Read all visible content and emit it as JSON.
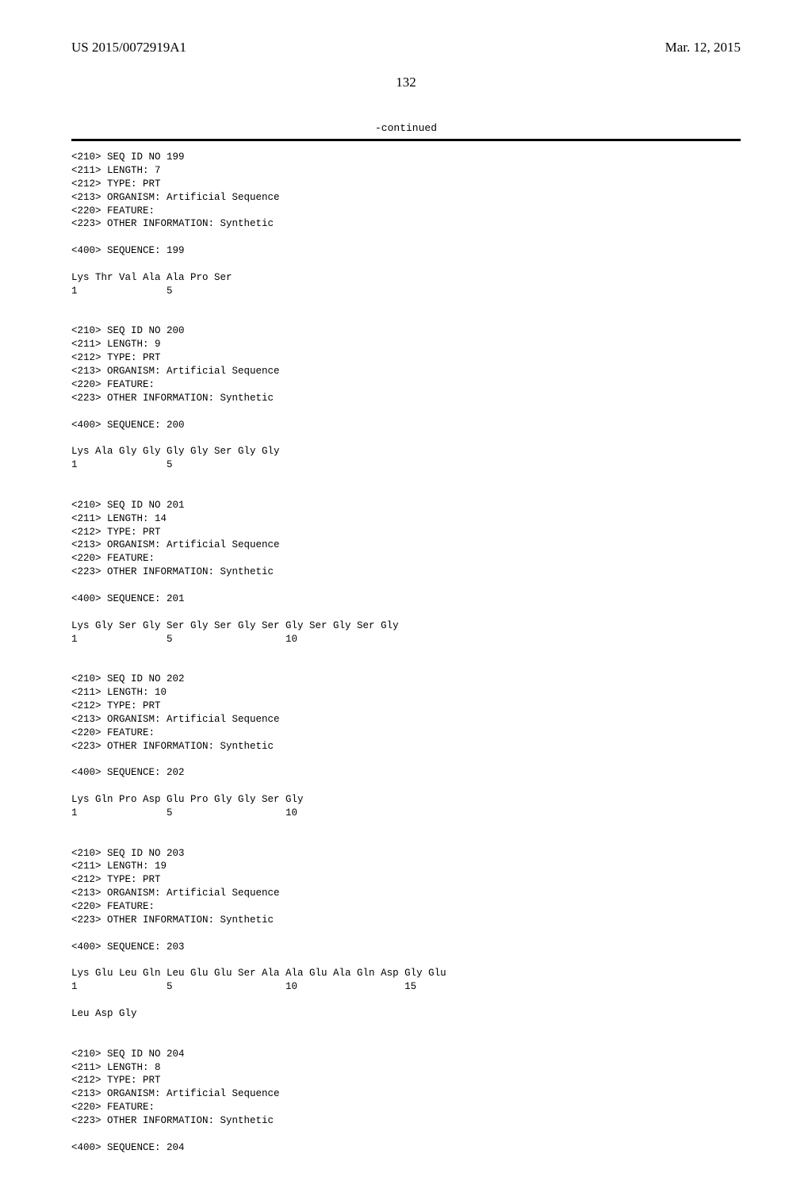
{
  "header": {
    "pub_num": "US 2015/0072919A1",
    "pub_date": "Mar. 12, 2015"
  },
  "page_number": "132",
  "continued_label": "-continued",
  "entries": [
    {
      "tags": [
        "<210> SEQ ID NO 199",
        "<211> LENGTH: 7",
        "<212> TYPE: PRT",
        "<213> ORGANISM: Artificial Sequence",
        "<220> FEATURE:",
        "<223> OTHER INFORMATION: Synthetic"
      ],
      "seq_tag": "<400> SEQUENCE: 199",
      "seq_lines": [
        "Lys Thr Val Ala Ala Pro Ser",
        "1               5"
      ]
    },
    {
      "tags": [
        "<210> SEQ ID NO 200",
        "<211> LENGTH: 9",
        "<212> TYPE: PRT",
        "<213> ORGANISM: Artificial Sequence",
        "<220> FEATURE:",
        "<223> OTHER INFORMATION: Synthetic"
      ],
      "seq_tag": "<400> SEQUENCE: 200",
      "seq_lines": [
        "Lys Ala Gly Gly Gly Gly Ser Gly Gly",
        "1               5"
      ]
    },
    {
      "tags": [
        "<210> SEQ ID NO 201",
        "<211> LENGTH: 14",
        "<212> TYPE: PRT",
        "<213> ORGANISM: Artificial Sequence",
        "<220> FEATURE:",
        "<223> OTHER INFORMATION: Synthetic"
      ],
      "seq_tag": "<400> SEQUENCE: 201",
      "seq_lines": [
        "Lys Gly Ser Gly Ser Gly Ser Gly Ser Gly Ser Gly Ser Gly",
        "1               5                   10"
      ]
    },
    {
      "tags": [
        "<210> SEQ ID NO 202",
        "<211> LENGTH: 10",
        "<212> TYPE: PRT",
        "<213> ORGANISM: Artificial Sequence",
        "<220> FEATURE:",
        "<223> OTHER INFORMATION: Synthetic"
      ],
      "seq_tag": "<400> SEQUENCE: 202",
      "seq_lines": [
        "Lys Gln Pro Asp Glu Pro Gly Gly Ser Gly",
        "1               5                   10"
      ]
    },
    {
      "tags": [
        "<210> SEQ ID NO 203",
        "<211> LENGTH: 19",
        "<212> TYPE: PRT",
        "<213> ORGANISM: Artificial Sequence",
        "<220> FEATURE:",
        "<223> OTHER INFORMATION: Synthetic"
      ],
      "seq_tag": "<400> SEQUENCE: 203",
      "seq_lines": [
        "Lys Glu Leu Gln Leu Glu Glu Ser Ala Ala Glu Ala Gln Asp Gly Glu",
        "1               5                   10                  15",
        "",
        "Leu Asp Gly"
      ]
    },
    {
      "tags": [
        "<210> SEQ ID NO 204",
        "<211> LENGTH: 8",
        "<212> TYPE: PRT",
        "<213> ORGANISM: Artificial Sequence",
        "<220> FEATURE:",
        "<223> OTHER INFORMATION: Synthetic"
      ],
      "seq_tag": "<400> SEQUENCE: 204",
      "seq_lines": []
    }
  ]
}
